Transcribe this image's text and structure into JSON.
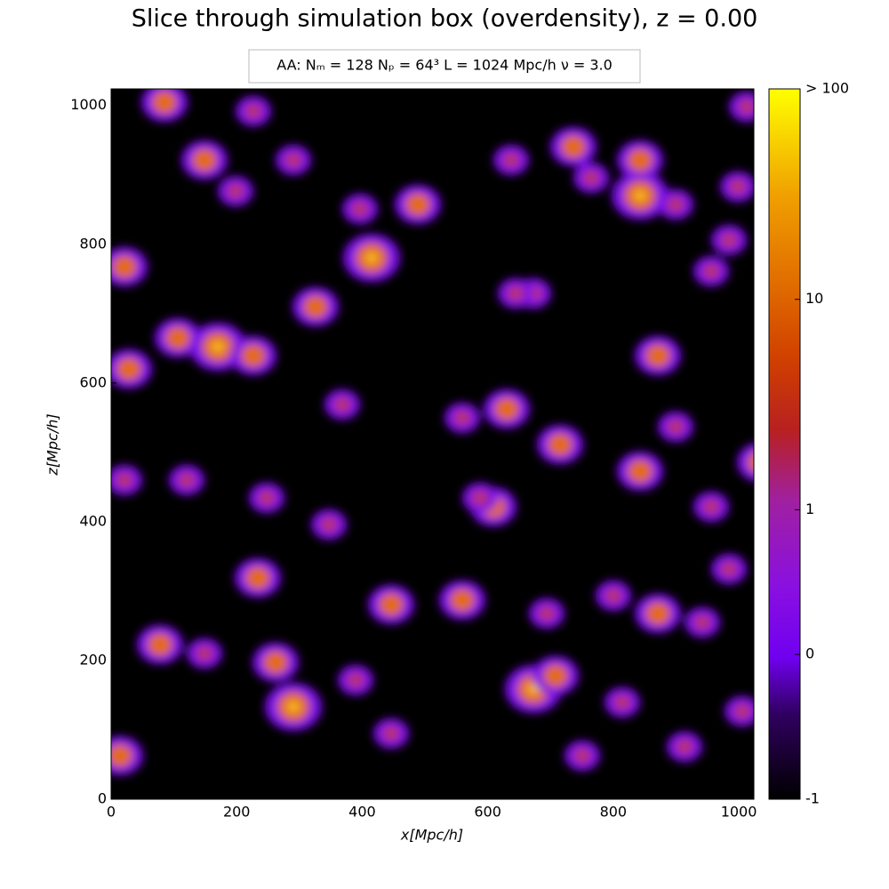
{
  "chart_data": {
    "type": "heatmap",
    "title": "Slice through simulation box (overdensity), z = 0.00",
    "annotation": "AA:  Nₘ = 128   Nₚ = 64³   L = 1024 Mpc/h   ν = 3.0",
    "x_label": "x[Mpc/h]",
    "y_label": "z[Mpc/h]",
    "xlim": [
      0,
      1024
    ],
    "ylim": [
      0,
      1024
    ],
    "xticks": [
      0,
      200,
      400,
      600,
      800,
      1000
    ],
    "yticks": [
      0,
      200,
      400,
      600,
      800,
      1000
    ],
    "colorbar": {
      "scale": "symlog",
      "lim": [
        -1,
        100
      ],
      "ticks": [
        -1,
        0,
        1,
        10,
        {
          "value": 100,
          "label": "> 100"
        }
      ]
    }
  }
}
